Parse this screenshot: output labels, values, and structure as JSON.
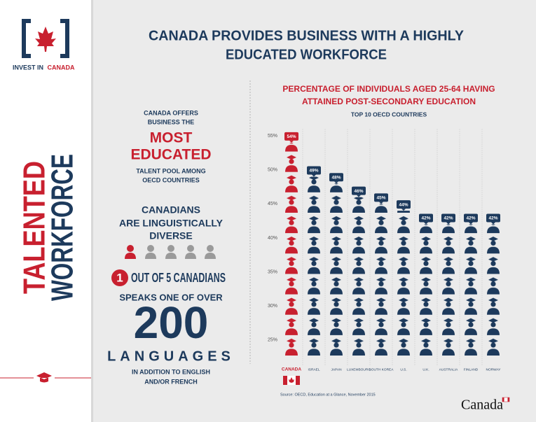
{
  "brand": {
    "prefix": "INVEST IN",
    "name": "CANADA"
  },
  "sidebar": {
    "line1": "TALENTED",
    "line2": "WORKFORCE"
  },
  "headline": [
    "CANADA PROVIDES BUSINESS WITH A HIGHLY",
    "EDUCATED WORKFORCE"
  ],
  "left_panel": {
    "education": [
      "CANADA OFFERS",
      "BUSINESS THE",
      "MOST",
      "EDUCATED",
      "TALENT POOL AMONG",
      "OECD COUNTRIES"
    ],
    "diversity": [
      "CANADIANS",
      "ARE LINGUISTICALLY",
      "DIVERSE"
    ],
    "ratio_number": "1",
    "ratio_text": "OUT OF 5 CANADIANS",
    "languages": [
      "SPEAKS ONE OF OVER",
      "200",
      "LANGUAGES",
      "IN ADDITION TO ENGLISH",
      "AND/OR FRENCH"
    ]
  },
  "chart_data": {
    "type": "bar",
    "title": [
      "PERCENTAGE OF INDIVIDUALS AGED 25-64 HAVING",
      "ATTAINED POST-SECONDARY EDUCATION"
    ],
    "subtitle": "TOP 10 OECD COUNTRIES",
    "categories": [
      "CANADA",
      "ISRAEL",
      "JAPAN",
      "LUXEMBOURG",
      "SOUTH KOREA",
      "U.S.",
      "U.K.",
      "AUSTRALIA",
      "FINLAND",
      "NORWAY"
    ],
    "values": [
      54,
      49,
      48,
      46,
      45,
      44,
      42,
      42,
      42,
      42
    ],
    "value_labels": [
      "54%",
      "49%",
      "48%",
      "46%",
      "45%",
      "44%",
      "42%",
      "42%",
      "42%",
      "42%"
    ],
    "colors": [
      "#c8202f",
      "#1d3a5c",
      "#1d3a5c",
      "#1d3a5c",
      "#1d3a5c",
      "#1d3a5c",
      "#1d3a5c",
      "#1d3a5c",
      "#1d3a5c",
      "#1d3a5c"
    ],
    "ylim": [
      22.5,
      56
    ],
    "yticks": [
      {
        "value": 25,
        "label": "25%"
      },
      {
        "value": 30,
        "label": "30%"
      },
      {
        "value": 35,
        "label": "35%"
      },
      {
        "value": 40,
        "label": "40%"
      },
      {
        "value": 45,
        "label": "45%"
      },
      {
        "value": 50,
        "label": "50%"
      },
      {
        "value": 55,
        "label": "55%"
      }
    ],
    "grid": false,
    "source": "Source: OECD, Education at a Glance, November 2015"
  },
  "wordmark": "Canada"
}
